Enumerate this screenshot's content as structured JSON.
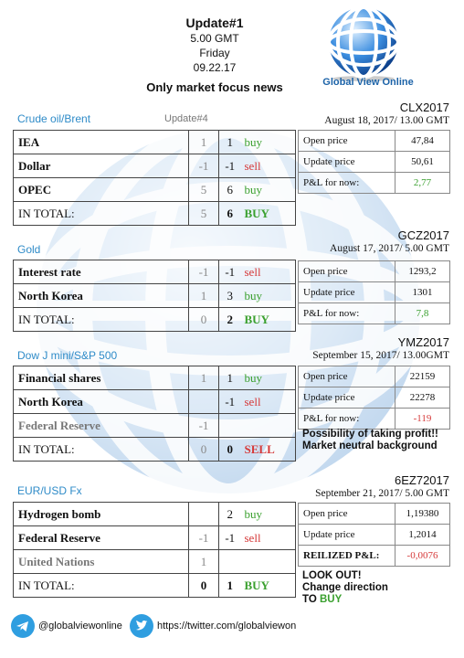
{
  "header": {
    "title": "Update#1",
    "time": "5.00 GMT",
    "day": "Friday",
    "date": "09.22.17",
    "focus": "Only market focus news"
  },
  "logo": {
    "text": "Global View Online"
  },
  "sections": [
    {
      "title": "Crude oil/Brent",
      "update_label": "Update#4",
      "rows": [
        {
          "name": "IEA",
          "prev": "1",
          "cur": "1",
          "action": "buy"
        },
        {
          "name": "Dollar",
          "prev": "-1",
          "cur": "-1",
          "action": "sell"
        },
        {
          "name": "OPEC",
          "prev": "5",
          "cur": "6",
          "action": "buy"
        },
        {
          "name": "IN TOTAL:",
          "prev": "5",
          "cur": "6",
          "action": "BUY"
        }
      ],
      "contract": {
        "code": "CLX2017",
        "date": "August 18, 2017/ 13.00 GMT"
      },
      "pl": [
        {
          "label": "Open price",
          "value": "47,84"
        },
        {
          "label": "Update price",
          "value": "50,61"
        },
        {
          "label": "P&L for now:",
          "value": "2,77"
        }
      ]
    },
    {
      "title": "Gold",
      "rows": [
        {
          "name": "Interest rate",
          "prev": "-1",
          "cur": "-1",
          "action": "sell"
        },
        {
          "name": "North Korea",
          "prev": "1",
          "cur": "3",
          "action": "buy"
        },
        {
          "name": "IN TOTAL:",
          "prev": "0",
          "cur": "2",
          "action": "BUY"
        }
      ],
      "contract": {
        "code": "GCZ2017",
        "date": "August 17, 2017/ 5.00 GMT"
      },
      "pl": [
        {
          "label": "Open price",
          "value": "1293,2"
        },
        {
          "label": "Update price",
          "value": "1301"
        },
        {
          "label": "P&L for now:",
          "value": "7,8"
        }
      ]
    },
    {
      "title": "Dow J mini/S&P 500",
      "rows": [
        {
          "name": "Financial shares",
          "prev": "1",
          "cur": "1",
          "action": "buy"
        },
        {
          "name": "North Korea",
          "prev": "",
          "cur": "-1",
          "action": "sell"
        },
        {
          "name": "Federal Reserve",
          "prev": "-1",
          "cur": "",
          "action": ""
        },
        {
          "name": "IN TOTAL:",
          "prev": "0",
          "cur": "0",
          "action": "SELL"
        }
      ],
      "contract": {
        "code": "YMZ2017",
        "date": "September 15, 2017/ 13.00GMT"
      },
      "pl": [
        {
          "label": "Open price",
          "value": "22159"
        },
        {
          "label": "Update price",
          "value": "22278"
        },
        {
          "label": "P&L for now:",
          "value": "-119"
        }
      ],
      "note": [
        "Possibility of taking profit!!",
        "Market neutral background"
      ]
    },
    {
      "title": "EUR/USD Fx",
      "rows": [
        {
          "name": "Hydrogen bomb",
          "prev": "",
          "cur": "2",
          "action": "buy"
        },
        {
          "name": "Federal Reserve",
          "prev": "-1",
          "cur": "-1",
          "action": "sell"
        },
        {
          "name": "United Nations",
          "prev": "1",
          "cur": "",
          "action": ""
        },
        {
          "name": "IN TOTAL:",
          "prev": "0",
          "cur": "1",
          "action": "BUY"
        }
      ],
      "contract": {
        "code": "6EZ72017",
        "date": "September 21, 2017/ 5.00 GMT"
      },
      "pl": [
        {
          "label": "Open price",
          "value": "1,19380"
        },
        {
          "label": "Update price",
          "value": "1,2014"
        },
        {
          "label": "REILIZED P&L:",
          "value": "-0,0076"
        }
      ],
      "note": [
        "LOOK OUT!",
        "Change direction",
        "TO",
        "BUY"
      ]
    }
  ],
  "footer": {
    "telegram": "@globalviewonline",
    "twitter": "https://twitter.com/globalviewon"
  },
  "colors": {
    "accent": "#2e8bc8",
    "buy": "#3aa02e",
    "sell": "#d63a3a"
  },
  "icons": [
    "globe-logo-icon",
    "telegram-icon",
    "twitter-icon"
  ]
}
